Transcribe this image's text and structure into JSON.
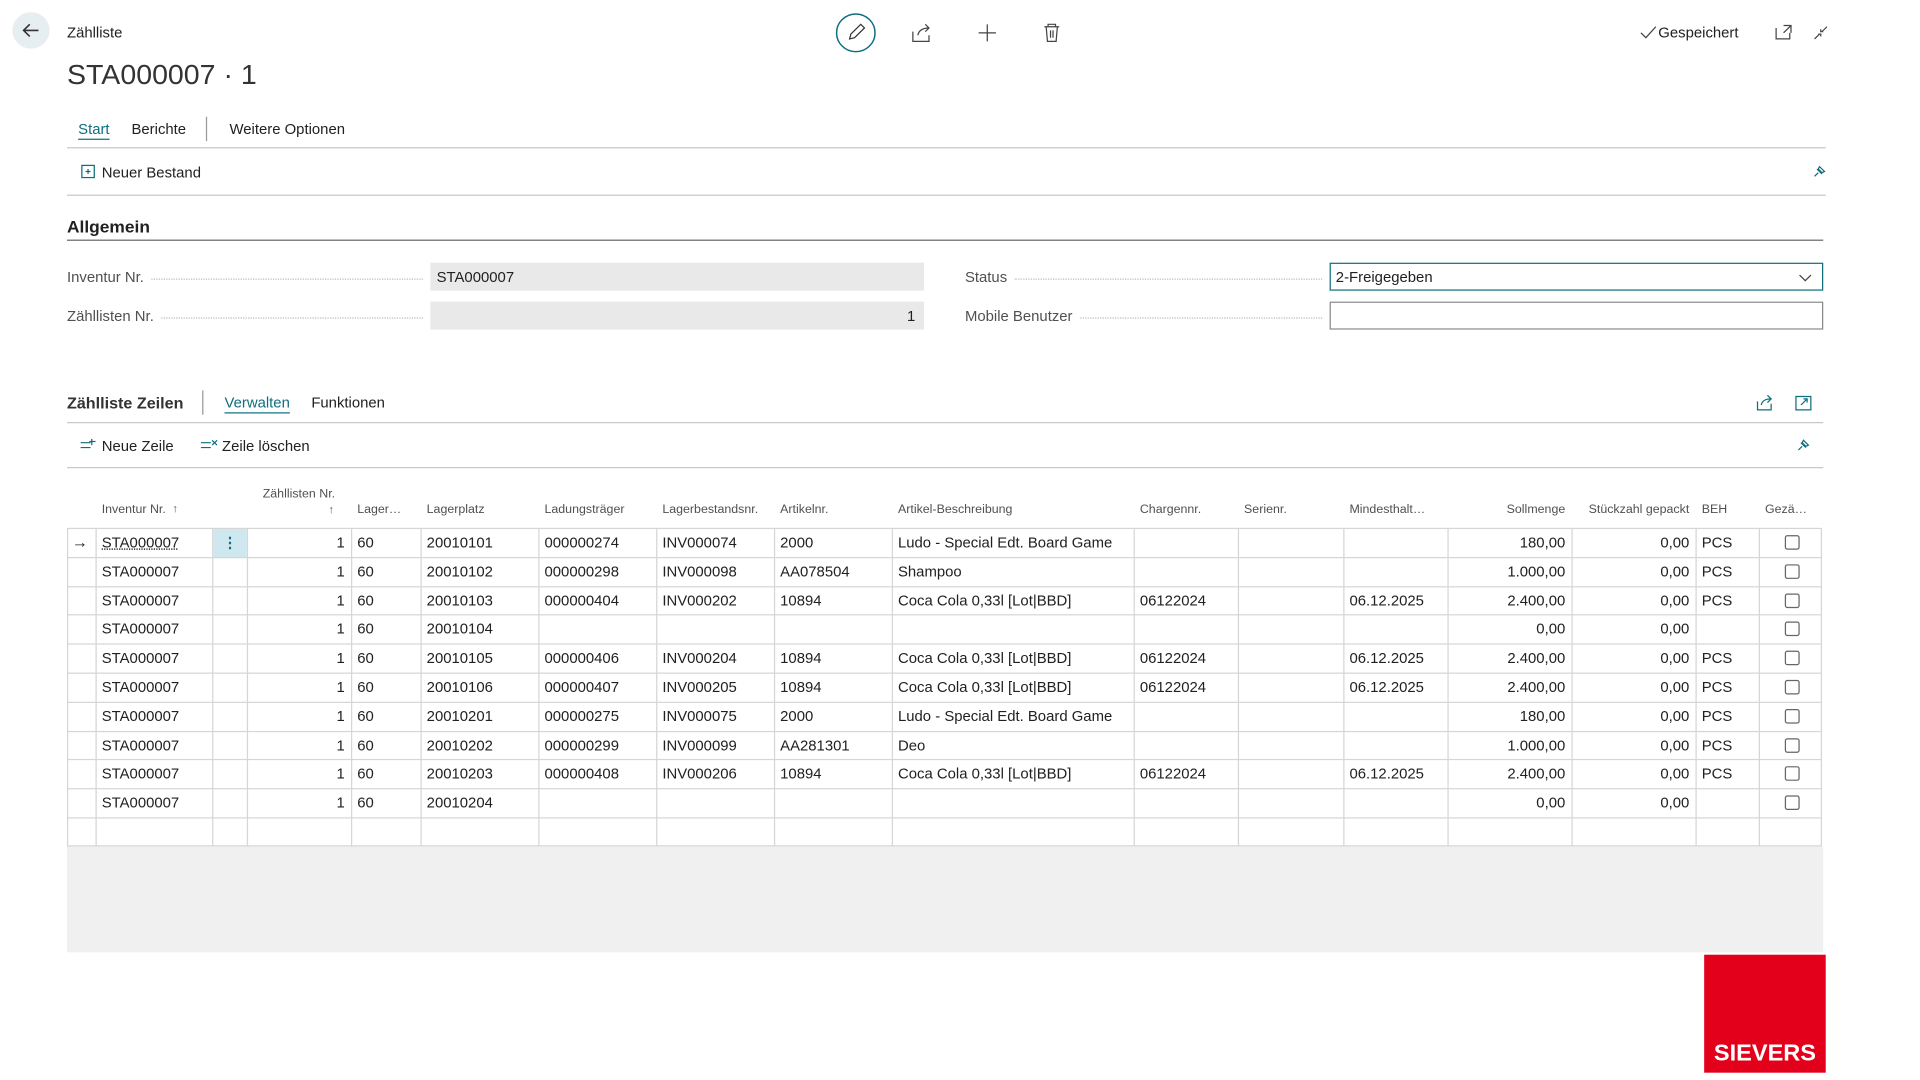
{
  "header": {
    "breadcrumb": "Zählliste",
    "title": "STA000007 · 1",
    "status": "Gespeichert"
  },
  "tabs": [
    "Start",
    "Berichte",
    "Weitere Optionen"
  ],
  "actions": [
    "Neuer Bestand"
  ],
  "section": {
    "title": "Allgemein",
    "fields": [
      {
        "label": "Inventur Nr.",
        "value": "STA000007"
      },
      {
        "label": "Zähllisten Nr.",
        "value": "1"
      },
      {
        "label": "Status",
        "value": "2-Freigegeben"
      },
      {
        "label": "Mobile Benutzer"
      }
    ]
  },
  "lines": {
    "title": "Zählliste Zeilen",
    "tabs": [
      "Verwalten",
      "Funktionen"
    ],
    "actions": [
      "Neue Zeile",
      "Zeile löschen"
    ],
    "columns": [
      "Inventur Nr.",
      "Zähllisten Nr.",
      "Lager…",
      "Lagerplatz",
      "Ladungsträger",
      "Lagerbestandsnr.",
      "Artikelnr.",
      "Artikel-Beschreibung",
      "Chargennr.",
      "Serienr.",
      "Mindesthalt…",
      "Sollmenge",
      "Stückzahl gepackt",
      "BEH",
      "Gezä…"
    ],
    "rows": [
      [
        "STA000007",
        "1",
        "60",
        "20010101",
        "000000274",
        "INV000074",
        "2000",
        "Ludo - Special Edt. Board Game",
        null,
        null,
        null,
        "180,00",
        "0,00",
        "PCS",
        false
      ],
      [
        "STA000007",
        "1",
        "60",
        "20010102",
        "000000298",
        "INV000098",
        "AA078504",
        "Shampoo",
        null,
        null,
        null,
        "1.000,00",
        "0,00",
        "PCS",
        false
      ],
      [
        "STA000007",
        "1",
        "60",
        "20010103",
        "000000404",
        "INV000202",
        "10894",
        "Coca Cola 0,33l [Lot|BBD]",
        "06122024",
        null,
        "06.12.2025",
        "2.400,00",
        "0,00",
        "PCS",
        false
      ],
      [
        "STA000007",
        "1",
        "60",
        "20010104",
        null,
        null,
        null,
        null,
        null,
        null,
        null,
        "0,00",
        "0,00",
        null,
        false
      ],
      [
        "STA000007",
        "1",
        "60",
        "20010105",
        "000000406",
        "INV000204",
        "10894",
        "Coca Cola 0,33l [Lot|BBD]",
        "06122024",
        null,
        "06.12.2025",
        "2.400,00",
        "0,00",
        "PCS",
        false
      ],
      [
        "STA000007",
        "1",
        "60",
        "20010106",
        "000000407",
        "INV000205",
        "10894",
        "Coca Cola 0,33l [Lot|BBD]",
        "06122024",
        null,
        "06.12.2025",
        "2.400,00",
        "0,00",
        "PCS",
        false
      ],
      [
        "STA000007",
        "1",
        "60",
        "20010201",
        "000000275",
        "INV000075",
        "2000",
        "Ludo - Special Edt. Board Game",
        null,
        null,
        null,
        "180,00",
        "0,00",
        "PCS",
        false
      ],
      [
        "STA000007",
        "1",
        "60",
        "20010202",
        "000000299",
        "INV000099",
        "AA281301",
        "Deo",
        null,
        null,
        null,
        "1.000,00",
        "0,00",
        "PCS",
        false
      ],
      [
        "STA000007",
        "1",
        "60",
        "20010203",
        "000000408",
        "INV000206",
        "10894",
        "Coca Cola 0,33l [Lot|BBD]",
        "06122024",
        null,
        "06.12.2025",
        "2.400,00",
        "0,00",
        "PCS",
        false
      ],
      [
        "STA000007",
        "1",
        "60",
        "20010204",
        null,
        null,
        null,
        null,
        null,
        null,
        null,
        "0,00",
        "0,00",
        null,
        false
      ]
    ]
  },
  "logo": "SIEVERS"
}
